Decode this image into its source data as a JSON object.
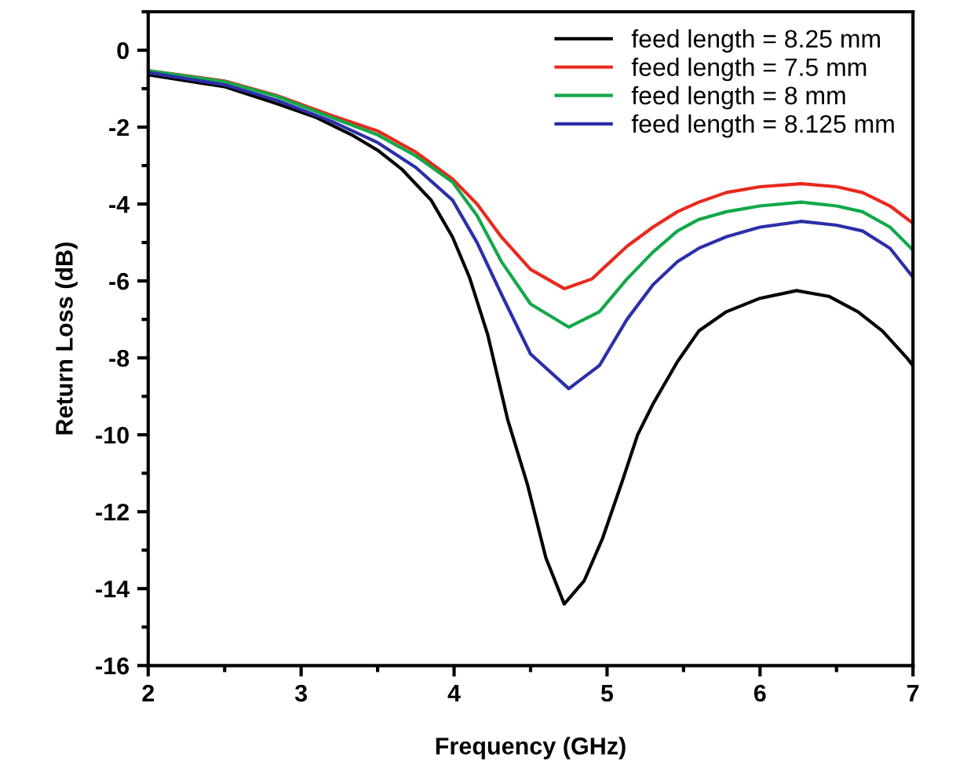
{
  "chart_data": {
    "type": "line",
    "xlabel": "Frequency (GHz)",
    "ylabel": "Return Loss (dB)",
    "xlim": [
      2,
      7
    ],
    "xticks": [
      2,
      3,
      4,
      5,
      6,
      7
    ],
    "ylim": [
      -16,
      1
    ],
    "yticks": [
      -16,
      -14,
      -12,
      -10,
      -8,
      -6,
      -4,
      -2,
      0
    ],
    "grid": false,
    "legend": "top right",
    "marker": "none",
    "line_style": "solid",
    "series": [
      {
        "name": "feed length = 8.25 mm",
        "color": "#000000",
        "x": [
          2,
          2.5,
          2.84,
          3.1,
          3.33,
          3.5,
          3.66,
          3.85,
          3.99,
          4.1,
          4.22,
          4.35,
          4.48,
          4.6,
          4.72,
          4.85,
          4.97,
          5.1,
          5.2,
          5.3,
          5.46,
          5.6,
          5.78,
          6.0,
          6.24,
          6.45,
          6.64,
          6.8,
          6.96,
          7
        ],
        "values": [
          -0.64,
          -0.95,
          -1.39,
          -1.75,
          -2.2,
          -2.6,
          -3.1,
          -3.9,
          -4.86,
          -5.9,
          -7.4,
          -9.6,
          -11.3,
          -13.2,
          -14.4,
          -13.8,
          -12.7,
          -11.2,
          -10.0,
          -9.2,
          -8.1,
          -7.3,
          -6.8,
          -6.45,
          -6.25,
          -6.4,
          -6.8,
          -7.3,
          -8.0,
          -8.2
        ]
      },
      {
        "name": "feed length = 7.5 mm",
        "color": "#e8291c",
        "x": [
          2,
          2.5,
          2.84,
          3.2,
          3.5,
          3.75,
          3.99,
          4.15,
          4.31,
          4.5,
          4.72,
          4.9,
          5.13,
          5.3,
          5.46,
          5.6,
          5.78,
          6.0,
          6.27,
          6.5,
          6.67,
          6.85,
          7
        ],
        "values": [
          -0.53,
          -0.8,
          -1.18,
          -1.7,
          -2.1,
          -2.65,
          -3.35,
          -4.0,
          -4.86,
          -5.7,
          -6.2,
          -5.95,
          -5.1,
          -4.6,
          -4.2,
          -3.95,
          -3.7,
          -3.55,
          -3.47,
          -3.55,
          -3.7,
          -4.05,
          -4.5
        ]
      },
      {
        "name": "feed length = 8 mm",
        "color": "#12a84a",
        "x": [
          2,
          2.5,
          2.84,
          3.2,
          3.5,
          3.75,
          3.99,
          4.15,
          4.31,
          4.5,
          4.75,
          4.95,
          5.13,
          5.3,
          5.46,
          5.6,
          5.78,
          6.0,
          6.27,
          6.5,
          6.67,
          6.85,
          7
        ],
        "values": [
          -0.53,
          -0.82,
          -1.2,
          -1.75,
          -2.2,
          -2.75,
          -3.43,
          -4.3,
          -5.5,
          -6.6,
          -7.2,
          -6.8,
          -5.95,
          -5.25,
          -4.7,
          -4.4,
          -4.2,
          -4.05,
          -3.95,
          -4.05,
          -4.2,
          -4.6,
          -5.2
        ]
      },
      {
        "name": "feed length = 8.125 mm",
        "color": "#2b2fa8",
        "x": [
          2,
          2.5,
          2.84,
          3.2,
          3.5,
          3.75,
          3.99,
          4.15,
          4.31,
          4.5,
          4.75,
          4.95,
          5.13,
          5.3,
          5.46,
          5.6,
          5.78,
          6.0,
          6.27,
          6.5,
          6.67,
          6.85,
          7
        ],
        "values": [
          -0.58,
          -0.9,
          -1.3,
          -1.85,
          -2.4,
          -3.05,
          -3.9,
          -5.0,
          -6.35,
          -7.9,
          -8.8,
          -8.2,
          -7.0,
          -6.1,
          -5.5,
          -5.15,
          -4.85,
          -4.6,
          -4.45,
          -4.55,
          -4.7,
          -5.15,
          -5.9
        ]
      }
    ]
  }
}
